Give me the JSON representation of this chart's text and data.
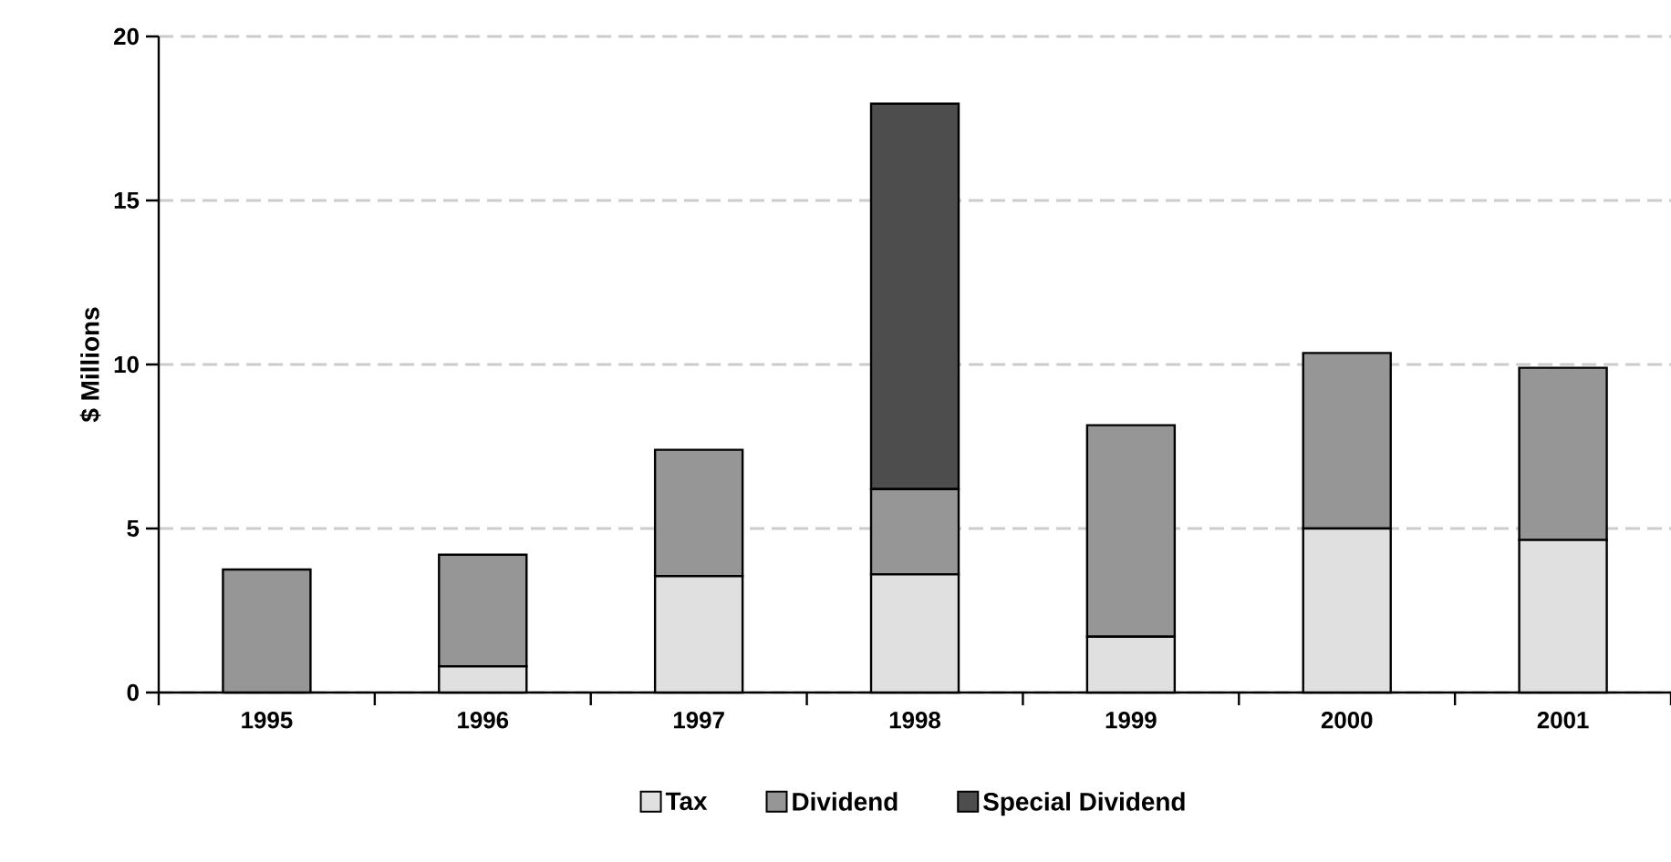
{
  "chart_data": {
    "type": "bar",
    "stacked": true,
    "ylabel": "$ Millions",
    "categories": [
      "1995",
      "1996",
      "1997",
      "1998",
      "1999",
      "2000",
      "2001"
    ],
    "series": [
      {
        "name": "Tax",
        "color": "#e0e0e0",
        "values": [
          0,
          0.8,
          3.55,
          3.6,
          1.7,
          5.0,
          4.65
        ]
      },
      {
        "name": "Dividend",
        "color": "#969696",
        "values": [
          3.75,
          3.4,
          3.85,
          2.6,
          6.45,
          5.35,
          5.25
        ]
      },
      {
        "name": "Special Dividend",
        "color": "#4d4d4d",
        "values": [
          0,
          0,
          0,
          11.75,
          0,
          0,
          0
        ]
      }
    ],
    "ylim": [
      0,
      20
    ],
    "yticks": [
      0,
      5,
      10,
      15,
      20
    ],
    "grid": "y",
    "legend": "bottom"
  }
}
